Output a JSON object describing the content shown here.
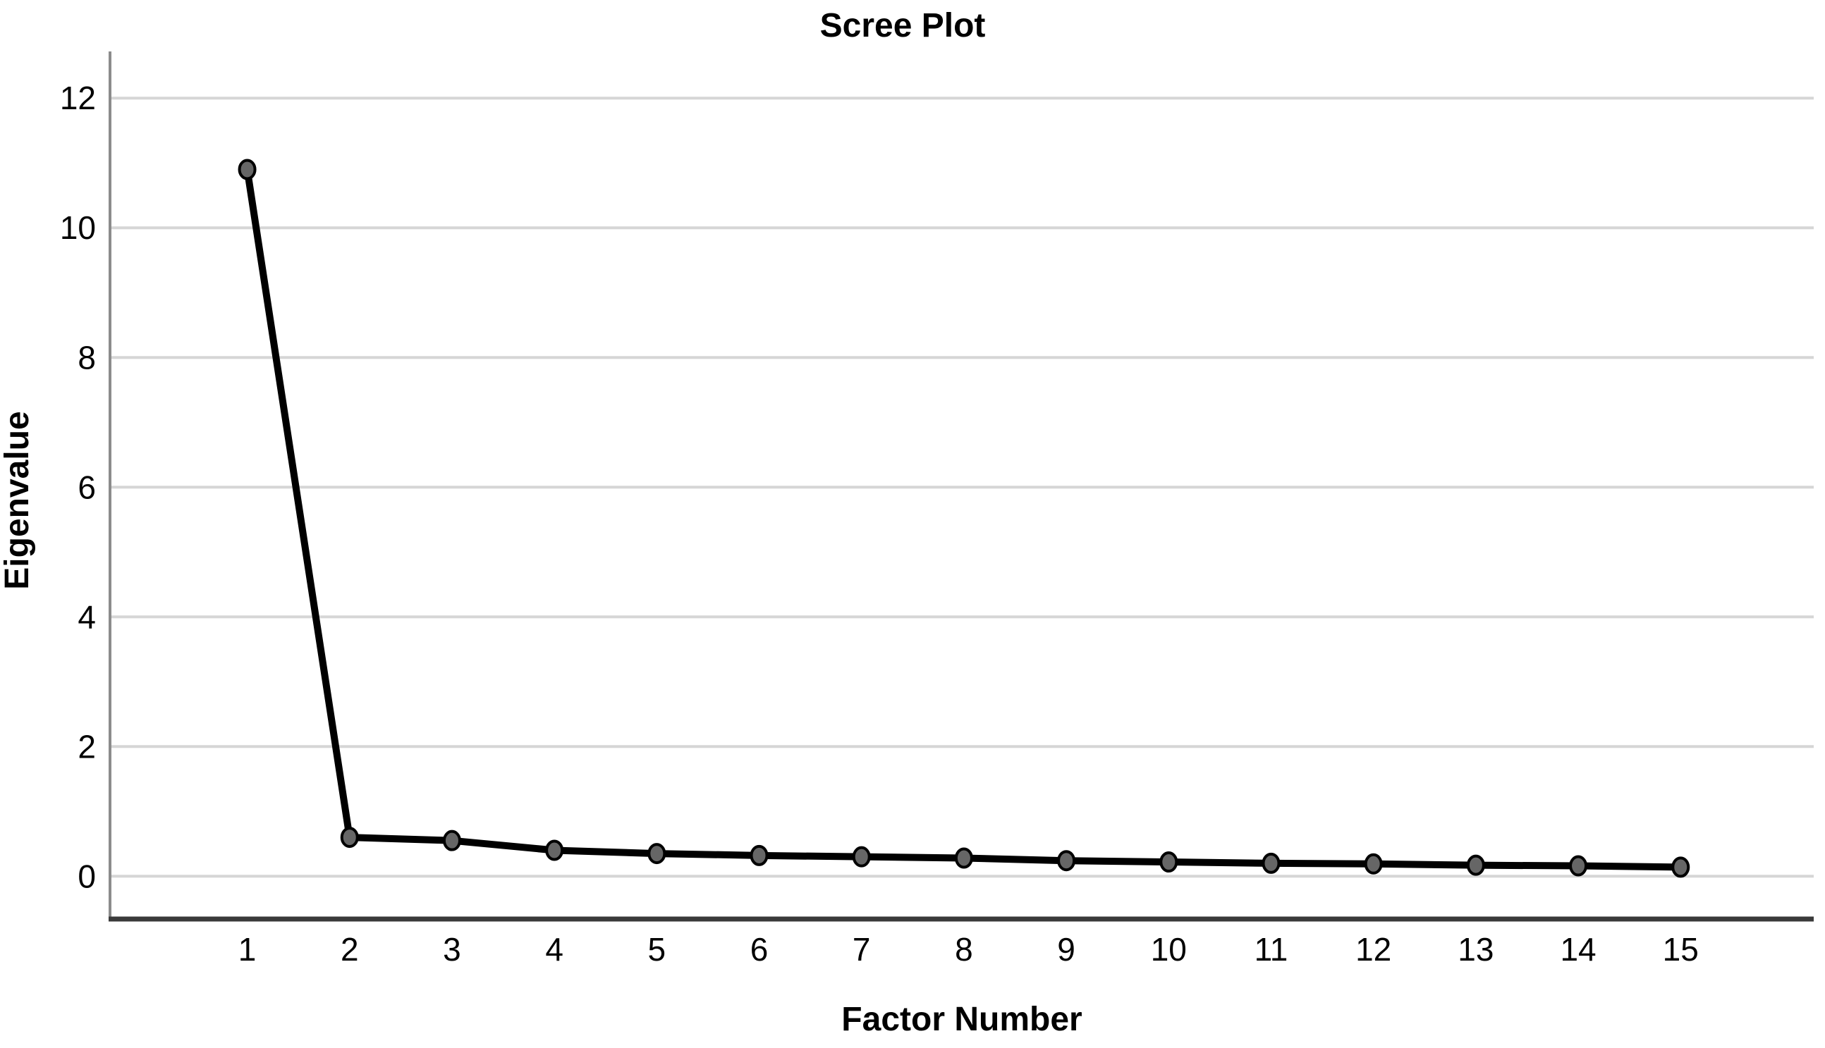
{
  "page": {
    "background": "#ffffff"
  },
  "chart_data": {
    "type": "line",
    "title": "Scree Plot",
    "xlabel": "Factor Number",
    "ylabel": "Eigenvalue",
    "series_name": "Eigenvalue",
    "x": [
      1,
      2,
      3,
      4,
      5,
      6,
      7,
      8,
      9,
      10,
      11,
      12,
      13,
      14,
      15
    ],
    "values": [
      10.9,
      0.6,
      0.55,
      0.4,
      0.35,
      0.32,
      0.3,
      0.28,
      0.24,
      0.22,
      0.2,
      0.19,
      0.17,
      0.16,
      0.14
    ],
    "xticks": [
      1,
      2,
      3,
      4,
      5,
      6,
      7,
      8,
      9,
      10,
      11,
      12,
      13,
      14,
      15
    ],
    "yticks": [
      0,
      2,
      4,
      6,
      8,
      10,
      12
    ],
    "xlim": [
      -0.34,
      16.3
    ],
    "ylim": [
      -0.66,
      12.72
    ],
    "grid": "horizontal-only",
    "legend": "none",
    "styles": {
      "line_color": "#000000",
      "line_width": 10,
      "marker_fill": "#666666",
      "marker_stroke": "#000000",
      "marker_stroke_width": 4,
      "gridline_color": "#d6d6d6",
      "gridline_width": 4,
      "y_axis_color": "#8c8c8c",
      "y_axis_width": 4,
      "x_axis_color": "#3a3a3a",
      "x_axis_width": 7,
      "text_color": "#000000",
      "background": "#ffffff"
    }
  }
}
